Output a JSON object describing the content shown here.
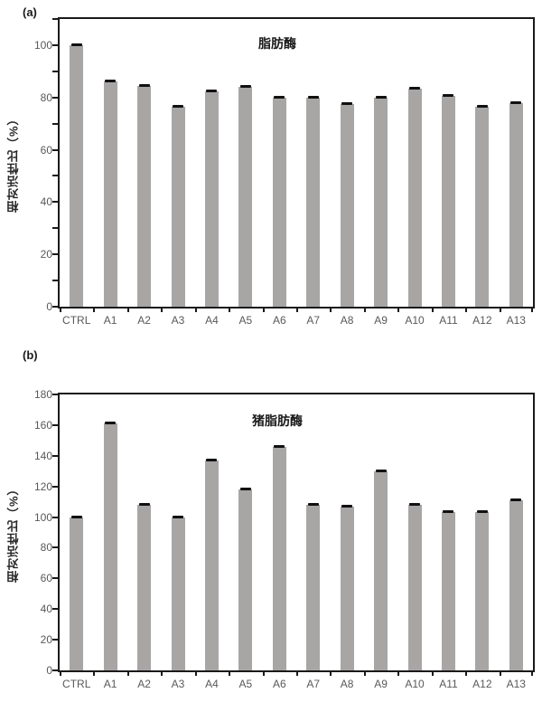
{
  "panels": [
    {
      "label": "(a)"
    },
    {
      "label": "(b)"
    }
  ],
  "chart_data": [
    {
      "type": "bar",
      "title": "脂肪酶",
      "ylabel": "相对活性比（%）",
      "xlabel": "",
      "categories": [
        "CTRL",
        "A1",
        "A2",
        "A3",
        "A4",
        "A5",
        "A6",
        "A7",
        "A8",
        "A9",
        "A10",
        "A11",
        "A12",
        "A13"
      ],
      "values": [
        100,
        86,
        84.5,
        76.5,
        82.5,
        84,
        80,
        80,
        77.5,
        80,
        83.5,
        80.5,
        76.5,
        78
      ],
      "ylim": [
        0,
        110
      ],
      "ytick_step": 10,
      "ylabel_step": 20,
      "ytick_labels": [
        "0",
        "20",
        "40",
        "60",
        "80",
        "100"
      ],
      "grid": false,
      "has_error_bars": true,
      "bar_color": "#a8a5a5",
      "error_cap_color": "#111111",
      "legend": null
    },
    {
      "type": "bar",
      "title": "猪脂肪酶",
      "ylabel": "相对活性比（%）",
      "xlabel": "",
      "categories": [
        "CTRL",
        "A1",
        "A2",
        "A3",
        "A4",
        "A5",
        "A6",
        "A7",
        "A8",
        "A9",
        "A10",
        "A11",
        "A12",
        "A13"
      ],
      "values": [
        100,
        161,
        108,
        100,
        137,
        118,
        146,
        108,
        107,
        130,
        108,
        103,
        103,
        111
      ],
      "ylim": [
        0,
        180
      ],
      "ytick_step": 20,
      "ylabel_step": 20,
      "ytick_labels": [
        "0",
        "20",
        "40",
        "60",
        "80",
        "100",
        "120",
        "140",
        "160",
        "180"
      ],
      "grid": false,
      "has_error_bars": true,
      "bar_color": "#a8a5a5",
      "error_cap_color": "#111111",
      "legend": null
    }
  ]
}
